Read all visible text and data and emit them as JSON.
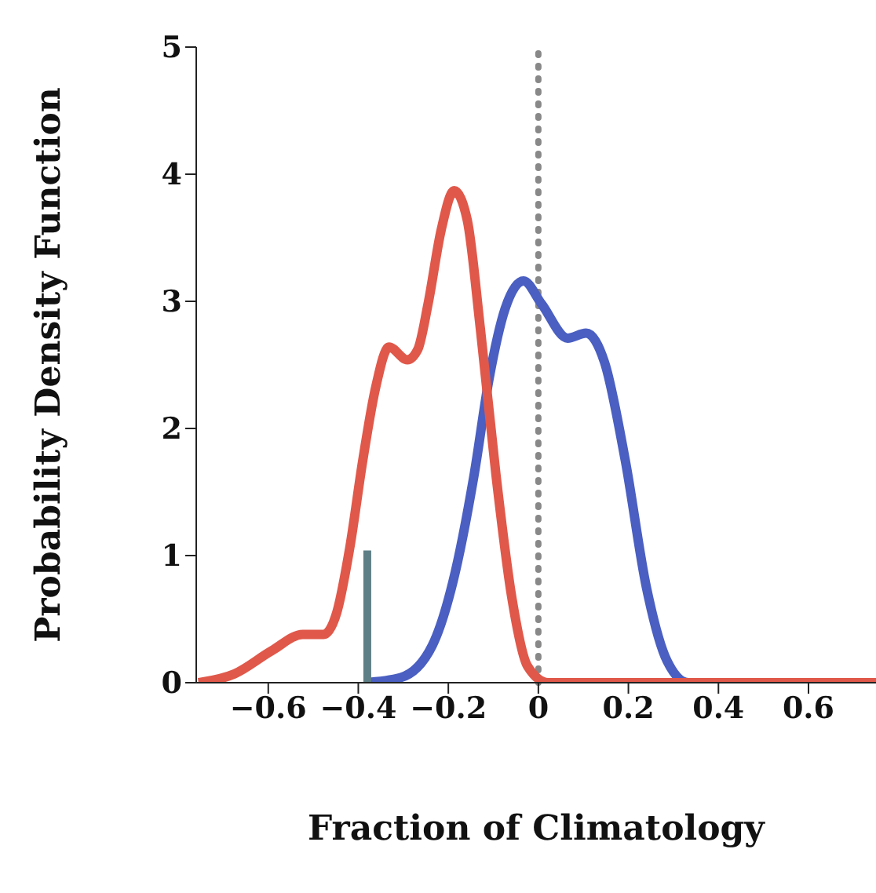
{
  "chart_data": {
    "type": "line",
    "xlabel": "Fraction of Climatology",
    "ylabel": "Probability Density Function",
    "xlim": [
      -0.76,
      0.75
    ],
    "xticks": [
      -0.6,
      -0.4,
      -0.2,
      0,
      0.2,
      0.4,
      0.6
    ],
    "ylim": [
      0,
      5
    ],
    "yticks": [
      0,
      1,
      2,
      3,
      4,
      5
    ],
    "marker": "none",
    "line_style": "solid",
    "series": [
      {
        "color": "#4a5fc1",
        "x": [
          -0.387,
          -0.306,
          -0.236,
          -0.19,
          -0.143,
          -0.109,
          -0.074,
          -0.033,
          0.007,
          0.065,
          0.106,
          0.147,
          0.193,
          0.24,
          0.286,
          0.333,
          0.75
        ],
        "values": [
          0,
          0.04,
          0.29,
          0.79,
          1.63,
          2.4,
          2.94,
          3.16,
          2.98,
          2.71,
          2.75,
          2.52,
          1.75,
          0.75,
          0.17,
          0,
          0
        ]
      },
      {
        "color": "#e0584a",
        "x": [
          -0.755,
          -0.675,
          -0.593,
          -0.523,
          -0.477,
          -0.448,
          -0.419,
          -0.39,
          -0.361,
          -0.332,
          -0.291,
          -0.268,
          -0.245,
          -0.216,
          -0.187,
          -0.158,
          -0.129,
          -0.094,
          -0.059,
          -0.024,
          0.022,
          0.75
        ],
        "values": [
          0,
          0.07,
          0.25,
          0.38,
          0.38,
          0.55,
          1.06,
          1.75,
          2.33,
          2.64,
          2.54,
          2.62,
          2.98,
          3.56,
          3.87,
          3.64,
          2.79,
          1.63,
          0.67,
          0.13,
          0,
          0
        ]
      },
      {
        "color": "#5f7f86",
        "x": [
          -0.38,
          -0.38
        ],
        "values": [
          0,
          1.04
        ]
      }
    ],
    "ref_lines": [
      {
        "axis": "x",
        "value": 0,
        "color": "#888888",
        "line_style": "dotted"
      }
    ]
  }
}
